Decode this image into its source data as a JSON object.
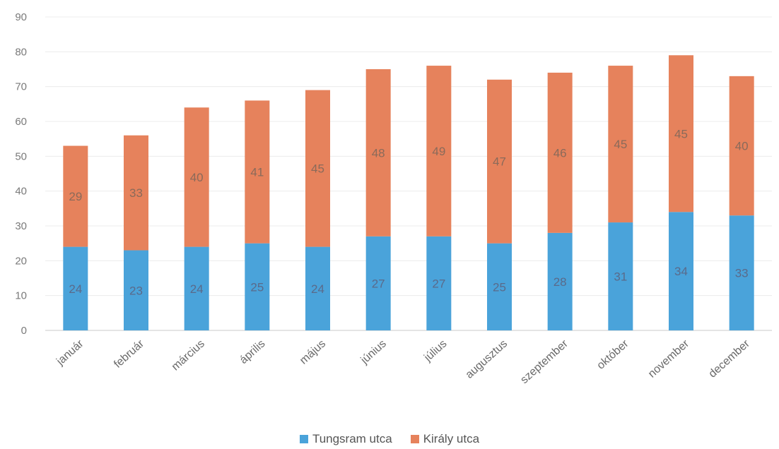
{
  "chart_data": {
    "type": "bar",
    "stacked": true,
    "categories": [
      "január",
      "február",
      "március",
      "április",
      "május",
      "június",
      "július",
      "augusztus",
      "szeptember",
      "október",
      "november",
      "december"
    ],
    "series": [
      {
        "name": "Tungsram utca",
        "color": "#4aa3da",
        "values": [
          24,
          23,
          24,
          25,
          24,
          27,
          27,
          25,
          28,
          31,
          34,
          33
        ]
      },
      {
        "name": "Király utca",
        "color": "#e6825c",
        "values": [
          29,
          33,
          40,
          41,
          45,
          48,
          49,
          47,
          46,
          45,
          45,
          40
        ]
      }
    ],
    "ylim": [
      0,
      90
    ],
    "yticks": [
      0,
      10,
      20,
      30,
      40,
      50,
      60,
      70,
      80,
      90
    ],
    "grid": true,
    "legend_position": "bottom",
    "data_labels": true
  }
}
